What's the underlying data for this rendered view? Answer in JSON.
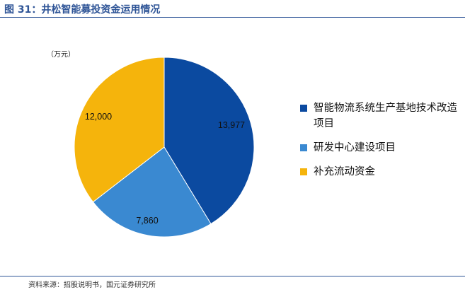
{
  "header": {
    "title": "图 31：井松智能募投资金运用情况"
  },
  "footer": {
    "source": "资料来源：招股说明书，国元证券研究所"
  },
  "chart_data": {
    "type": "pie",
    "unit_label": "（万元）",
    "slices": [
      {
        "name": "智能物流系统生产基地技术改造项目",
        "value": 13977,
        "label": "13,977",
        "color": "#0b4aa0"
      },
      {
        "name": "研发中心建设项目",
        "value": 7860,
        "label": "7,860",
        "color": "#3a89d1"
      },
      {
        "name": "补充流动资金",
        "value": 12000,
        "label": "12,000",
        "color": "#f5b40c"
      }
    ],
    "legend_position": "right",
    "start_angle": "12 o'clock, clockwise"
  }
}
